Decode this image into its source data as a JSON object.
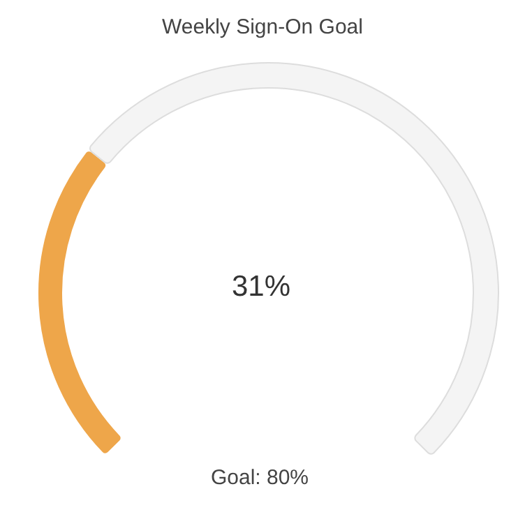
{
  "chart_data": {
    "type": "donut",
    "title": "Weekly Sign-On Goal",
    "categories": [
      null,
      null
    ],
    "values": [
      31,
      69
    ],
    "colors": [
      "#eea64a",
      "#f4f4f4"
    ],
    "value_labels": [
      "31%",
      null
    ],
    "annotations": [
      "Goal: 80%"
    ]
  }
}
